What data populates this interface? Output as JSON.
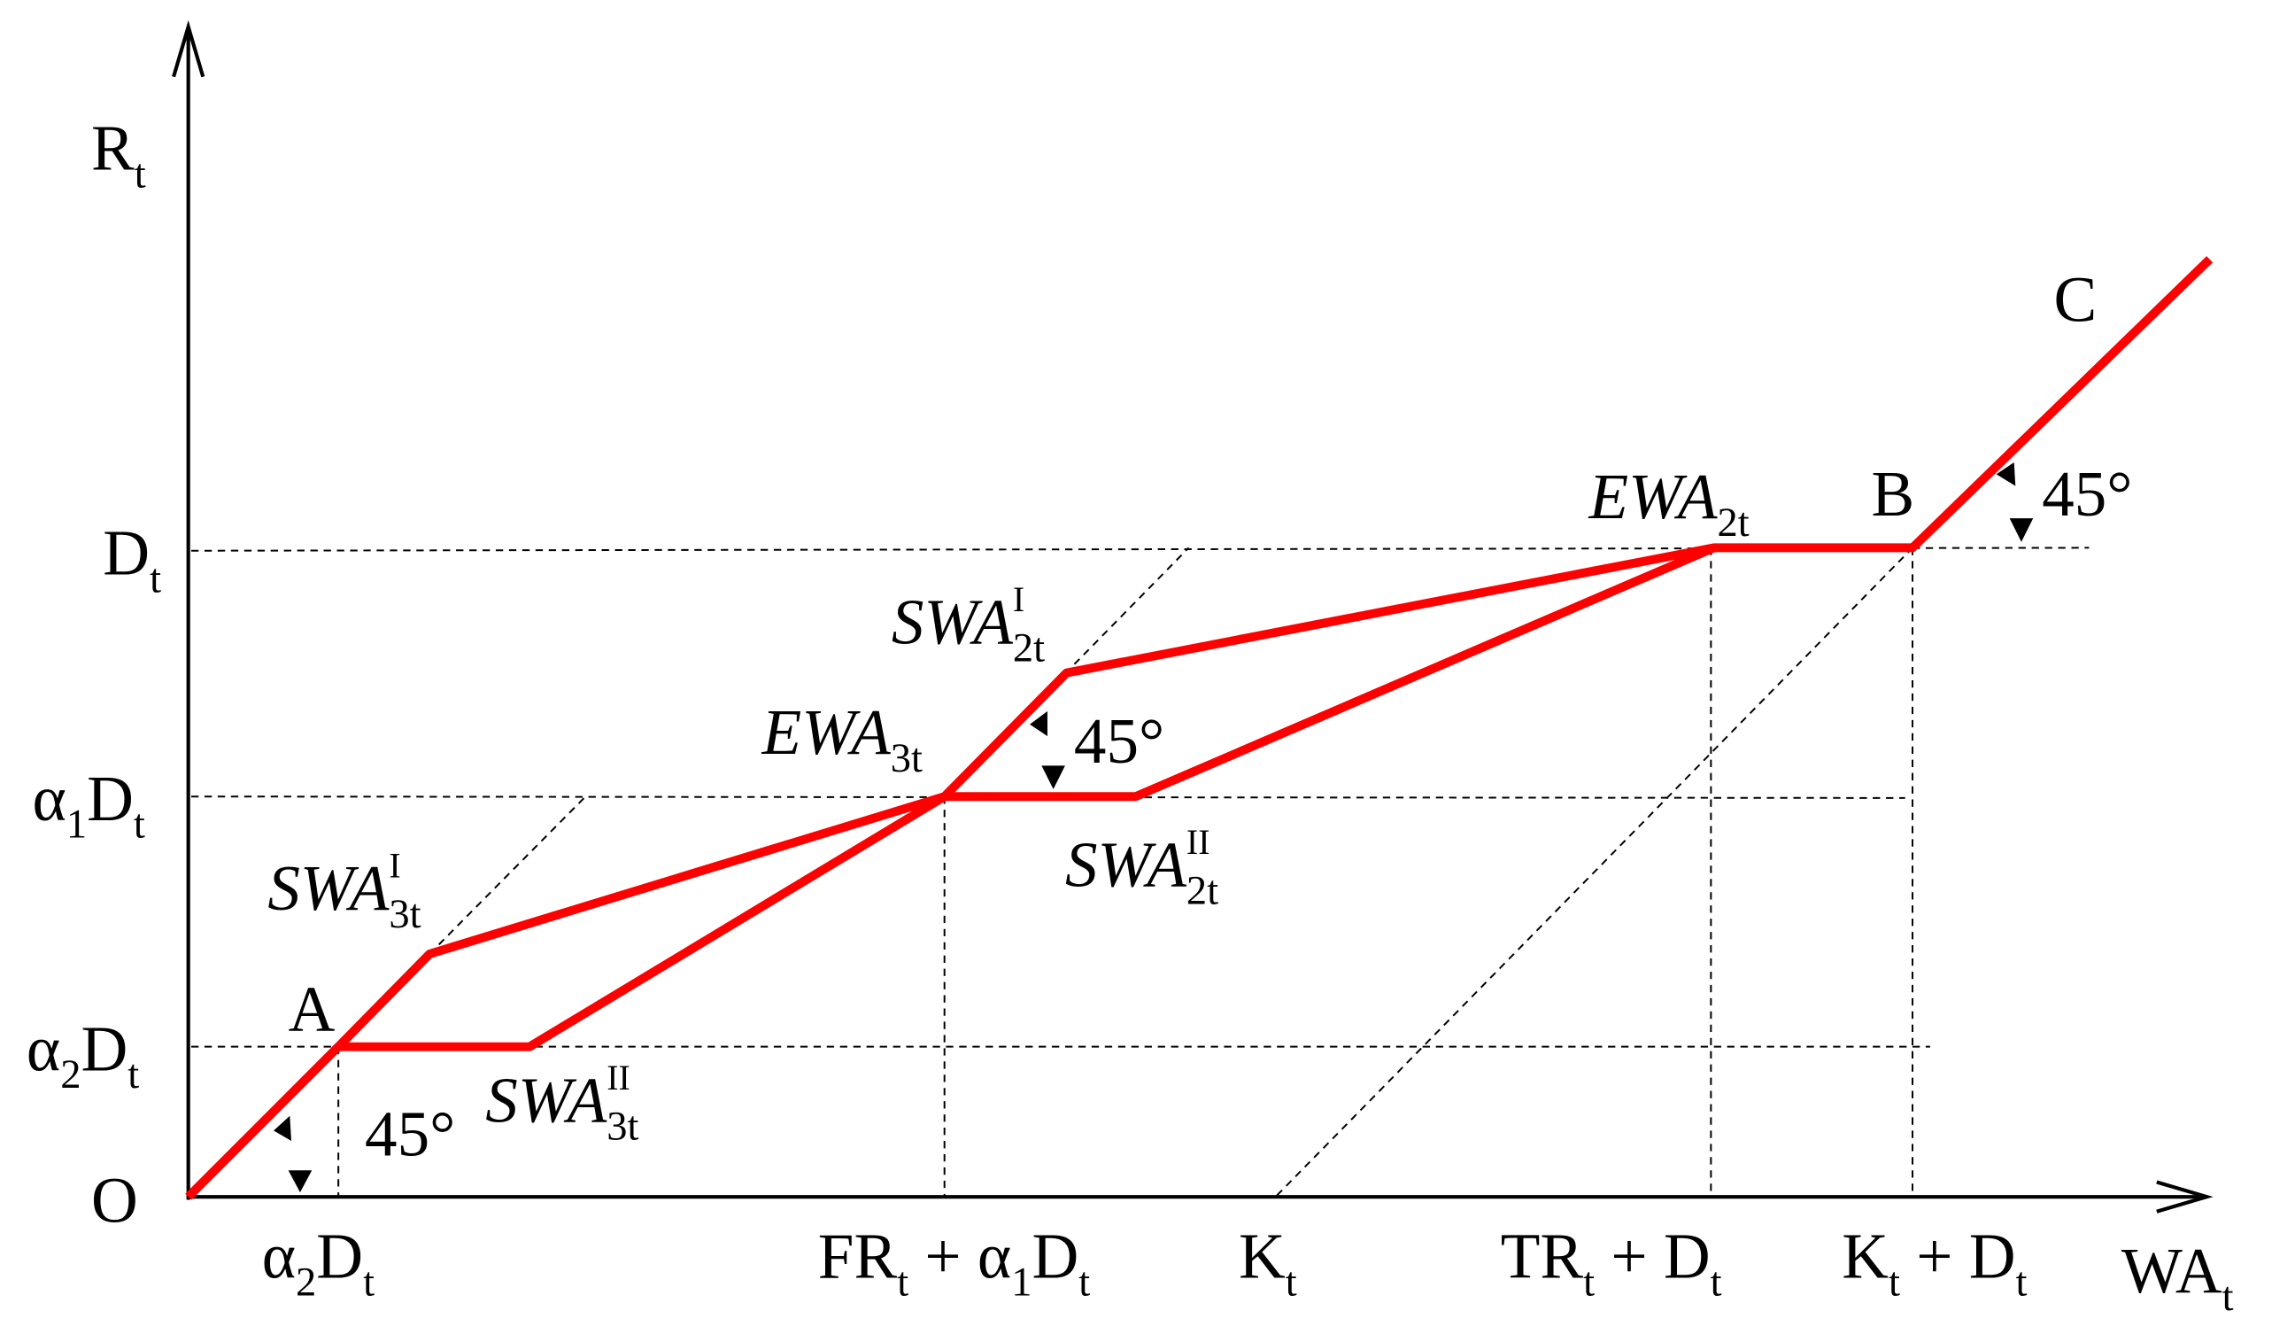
{
  "axis_labels": [
    [
      {
        "t": "R"
      },
      {
        "sub": "t"
      }
    ],
    [
      {
        "t": "WA"
      },
      {
        "sub": "t"
      }
    ],
    [
      {
        "t": "O"
      }
    ]
  ],
  "y_tick_labels": [
    [
      {
        "t": "D"
      },
      {
        "sub": "t"
      }
    ],
    [
      {
        "t": "α"
      },
      {
        "sub": "1"
      },
      {
        "t": "D"
      },
      {
        "sub": "t"
      }
    ],
    [
      {
        "t": "α"
      },
      {
        "sub": "2"
      },
      {
        "t": "D"
      },
      {
        "sub": "t"
      }
    ]
  ],
  "x_tick_labels": [
    [
      {
        "t": "α"
      },
      {
        "sub": "2"
      },
      {
        "t": "D"
      },
      {
        "sub": "t"
      }
    ],
    [
      {
        "t": "FR"
      },
      {
        "sub": "t"
      },
      {
        "t": " + α"
      },
      {
        "sub": "1"
      },
      {
        "t": "D"
      },
      {
        "sub": "t"
      }
    ],
    [
      {
        "t": "K"
      },
      {
        "sub": "t"
      }
    ],
    [
      {
        "t": "TR"
      },
      {
        "sub": "t"
      },
      {
        "t": " + D"
      },
      {
        "sub": "t"
      }
    ],
    [
      {
        "t": "K"
      },
      {
        "sub": "t"
      },
      {
        "t": " + D"
      },
      {
        "sub": "t"
      }
    ]
  ],
  "point_labels": [
    [
      {
        "t": "A"
      }
    ],
    [
      {
        "t": "B"
      }
    ],
    [
      {
        "t": "C"
      }
    ]
  ],
  "curve_labels": [
    [
      {
        "t": "EWA"
      },
      {
        "sub": "2t"
      }
    ],
    [
      {
        "t": "SWA"
      },
      {
        "sup": "I"
      },
      {
        "sub": "2t"
      }
    ],
    [
      {
        "t": "EWA"
      },
      {
        "sub": "3t"
      }
    ],
    [
      {
        "t": "SWA"
      },
      {
        "sup": "II"
      },
      {
        "sub": "2t"
      }
    ],
    [
      {
        "t": "SWA"
      },
      {
        "sup": "I"
      },
      {
        "sub": "3t"
      }
    ],
    [
      {
        "t": "SWA"
      },
      {
        "sup": "II"
      },
      {
        "sub": "3t"
      }
    ]
  ],
  "angle_labels": [
    [
      {
        "t": "45°"
      }
    ],
    [
      {
        "t": "45°"
      }
    ],
    [
      {
        "t": "45°"
      }
    ]
  ]
}
